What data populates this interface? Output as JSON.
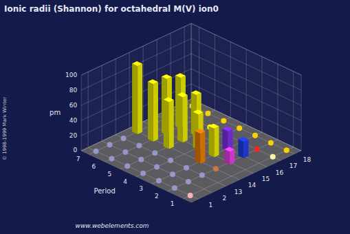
{
  "chart_data": {
    "type": "bar3d",
    "title": "Ionic radii (Shannon) for octahedral M(V) ion0",
    "ylabel": "Period",
    "zlabel": "pm",
    "categories": [
      1,
      2,
      13,
      14,
      15,
      16,
      17,
      18
    ],
    "y_categories": [
      1,
      2,
      3,
      4,
      5,
      6,
      7
    ],
    "zlim": [
      0,
      100
    ],
    "zticks": [
      0,
      20,
      40,
      60,
      80,
      100
    ],
    "grid": true,
    "bars": [
      {
        "category": 15,
        "y_category": 2,
        "value": 17,
        "color": "#FF44FF"
      },
      {
        "category": 16,
        "y_category": 2,
        "value": 22,
        "color": "#2244FF"
      },
      {
        "category": 14,
        "y_category": 3,
        "value": 40,
        "color": "#FF8800"
      },
      {
        "category": 15,
        "y_category": 3,
        "value": 38,
        "color": "#FFFF00"
      },
      {
        "category": 16,
        "y_category": 3,
        "value": 26,
        "color": "#8833FF"
      },
      {
        "category": 15,
        "y_category": 4,
        "value": 47,
        "color": "#FFFF00"
      },
      {
        "category": 14,
        "y_category": 5,
        "value": 62,
        "color": "#FFFF00"
      },
      {
        "category": 15,
        "y_category": 5,
        "value": 60,
        "color": "#FFFF00"
      },
      {
        "category": 16,
        "y_category": 5,
        "value": 54,
        "color": "#FFFF00"
      },
      {
        "category": 14,
        "y_category": 6,
        "value": 76,
        "color": "#FFFF00"
      },
      {
        "category": 15,
        "y_category": 6,
        "value": 74,
        "color": "#FFFF00"
      },
      {
        "category": 16,
        "y_category": 6,
        "value": 67,
        "color": "#FFFF00"
      },
      {
        "category": 14,
        "y_category": 7,
        "value": 90,
        "color": "#FFFF00"
      }
    ],
    "dots": [
      {
        "category": 1,
        "y_category": 1,
        "color": "#FFB6C1"
      },
      {
        "category": 17,
        "y_category": 1,
        "color": "#FFFFAA"
      },
      {
        "category": 18,
        "y_category": 1,
        "color": "#FFD700"
      },
      {
        "category": 1,
        "y_category": 2,
        "color": "#9999CC"
      },
      {
        "category": 2,
        "y_category": 2,
        "color": "#9999CC"
      },
      {
        "category": 13,
        "y_category": 2,
        "color": "#9999CC"
      },
      {
        "category": 14,
        "y_category": 2,
        "color": "#CC7744"
      },
      {
        "category": 17,
        "y_category": 2,
        "color": "#FF2222"
      },
      {
        "category": 18,
        "y_category": 2,
        "color": "#FFD700"
      },
      {
        "category": 1,
        "y_category": 3,
        "color": "#9999CC"
      },
      {
        "category": 2,
        "y_category": 3,
        "color": "#9999CC"
      },
      {
        "category": 13,
        "y_category": 3,
        "color": "#9999CC"
      },
      {
        "category": 17,
        "y_category": 3,
        "color": "#008800"
      },
      {
        "category": 18,
        "y_category": 3,
        "color": "#FFD700"
      },
      {
        "category": 1,
        "y_category": 4,
        "color": "#9999CC"
      },
      {
        "category": 2,
        "y_category": 4,
        "color": "#9999CC"
      },
      {
        "category": 13,
        "y_category": 4,
        "color": "#9999CC"
      },
      {
        "category": 17,
        "y_category": 4,
        "color": "#880000"
      },
      {
        "category": 18,
        "y_category": 4,
        "color": "#FFD700"
      },
      {
        "category": 1,
        "y_category": 5,
        "color": "#9999CC"
      },
      {
        "category": 2,
        "y_category": 5,
        "color": "#9999CC"
      },
      {
        "category": 13,
        "y_category": 5,
        "color": "#9999CC"
      },
      {
        "category": 17,
        "y_category": 5,
        "color": "#FFFF00"
      },
      {
        "category": 18,
        "y_category": 5,
        "color": "#FFD700"
      },
      {
        "category": 1,
        "y_category": 6,
        "color": "#9999CC"
      },
      {
        "category": 2,
        "y_category": 6,
        "color": "#9999CC"
      },
      {
        "category": 13,
        "y_category": 6,
        "color": "#9999CC"
      },
      {
        "category": 17,
        "y_category": 6,
        "color": "#FFFF00"
      },
      {
        "category": 18,
        "y_category": 6,
        "color": "#FFD700"
      },
      {
        "category": 1,
        "y_category": 7,
        "color": "#9999CC"
      },
      {
        "category": 2,
        "y_category": 7,
        "color": "#9999CC"
      },
      {
        "category": 13,
        "y_category": 7,
        "color": "#9999CC"
      },
      {
        "category": 15,
        "y_category": 7,
        "color": "#FFFF00"
      },
      {
        "category": 16,
        "y_category": 7,
        "color": "#FFFF00"
      },
      {
        "category": 17,
        "y_category": 7,
        "color": "#FFFF00"
      },
      {
        "category": 18,
        "y_category": 7,
        "color": "#FFD700"
      }
    ],
    "annotations": [
      "www.webelements.com",
      "© 1998-1999 Mark Winter"
    ]
  }
}
